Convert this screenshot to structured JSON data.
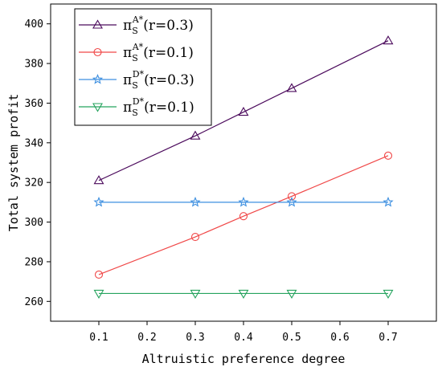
{
  "chart_data": {
    "type": "line",
    "xlabel": "Altruistic preference degree",
    "ylabel": "Total system profit",
    "x": [
      0.1,
      0.3,
      0.4,
      0.5,
      0.7
    ],
    "xlim": [
      0.0,
      0.8
    ],
    "ylim": [
      250,
      410
    ],
    "xticks": [
      "0.1",
      "0.2",
      "0.3",
      "0.4",
      "0.5",
      "0.6",
      "0.7"
    ],
    "yticks": [
      "260",
      "280",
      "300",
      "320",
      "340",
      "360",
      "380",
      "400"
    ],
    "legend_position": "top-left",
    "series": [
      {
        "symbol": "π",
        "sub": "S",
        "sup": "A*",
        "param": "(r=0.3)",
        "color": "#4b0a5c",
        "marker": "triangle-up",
        "values": [
          321,
          343.5,
          355.5,
          367.5,
          391.5
        ]
      },
      {
        "symbol": "π",
        "sub": "S",
        "sup": "A*",
        "param": "(r=0.1)",
        "color": "#f04848",
        "marker": "circle",
        "values": [
          273.5,
          292.5,
          303,
          313,
          333.5
        ]
      },
      {
        "symbol": "π",
        "sub": "S",
        "sup": "D*",
        "param": "(r=0.3)",
        "color": "#3d8fe0",
        "marker": "star",
        "values": [
          310,
          310,
          310,
          310,
          310
        ]
      },
      {
        "symbol": "π",
        "sub": "S",
        "sup": "D*",
        "param": "(r=0.1)",
        "color": "#25a35e",
        "marker": "triangle-down",
        "values": [
          264,
          264,
          264,
          264,
          264
        ]
      }
    ]
  }
}
